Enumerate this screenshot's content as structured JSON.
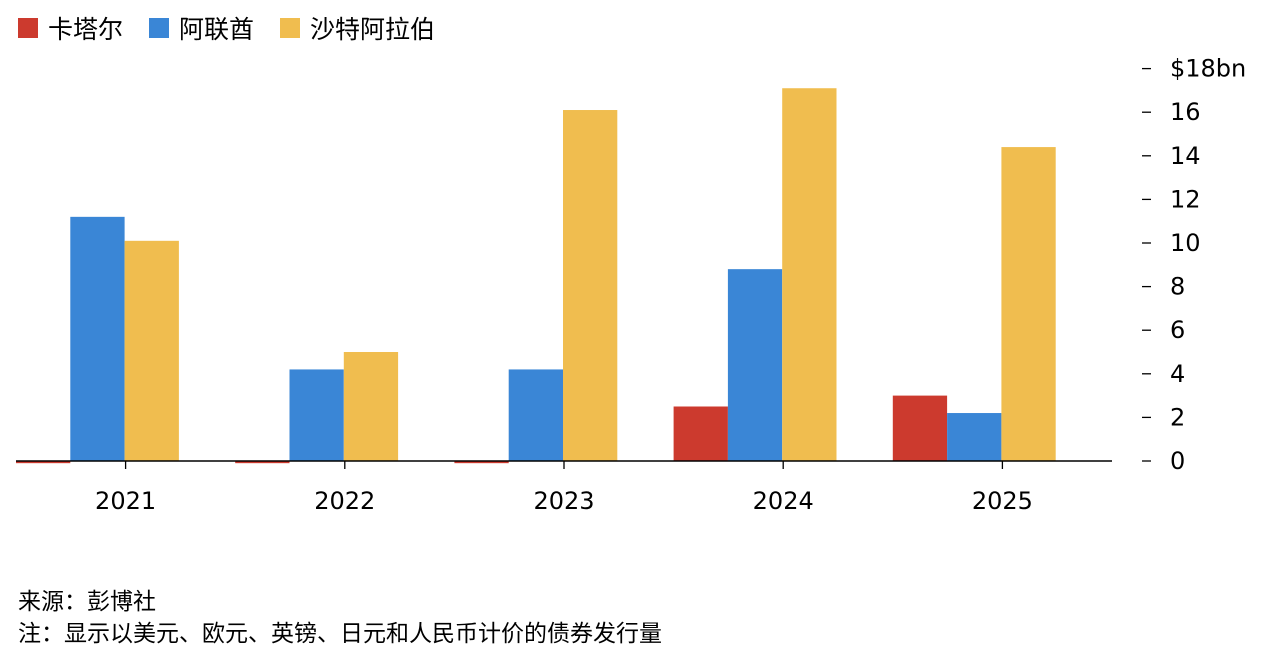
{
  "chart_data": {
    "type": "bar",
    "categories": [
      "2021",
      "2022",
      "2023",
      "2024",
      "2025"
    ],
    "series": [
      {
        "name": "卡塔尔",
        "color": "#CC3A2E",
        "values": [
          -0.1,
          -0.1,
          -0.1,
          2.5,
          3.0
        ]
      },
      {
        "name": "阿联酋",
        "color": "#3A86D6",
        "values": [
          11.2,
          4.2,
          4.2,
          8.8,
          2.2
        ]
      },
      {
        "name": "沙特阿拉伯",
        "color": "#F0BD4F",
        "values": [
          10.1,
          5.0,
          16.1,
          17.1,
          14.4
        ]
      }
    ],
    "y_ticks": [
      {
        "value": 0,
        "label": "0"
      },
      {
        "value": 2,
        "label": "2"
      },
      {
        "value": 4,
        "label": "4"
      },
      {
        "value": 6,
        "label": "6"
      },
      {
        "value": 8,
        "label": "8"
      },
      {
        "value": 10,
        "label": "10"
      },
      {
        "value": 12,
        "label": "12"
      },
      {
        "value": 14,
        "label": "14"
      },
      {
        "value": 16,
        "label": "16"
      },
      {
        "value": 18,
        "label": "$18bn"
      }
    ],
    "ylim": [
      0,
      18
    ],
    "axis_side": "right",
    "legend_position": "top-left",
    "grid": false
  },
  "footer": {
    "source": "来源：彭博社",
    "note": "注：显示以美元、欧元、英镑、日元和人民币计价的债券发行量"
  }
}
